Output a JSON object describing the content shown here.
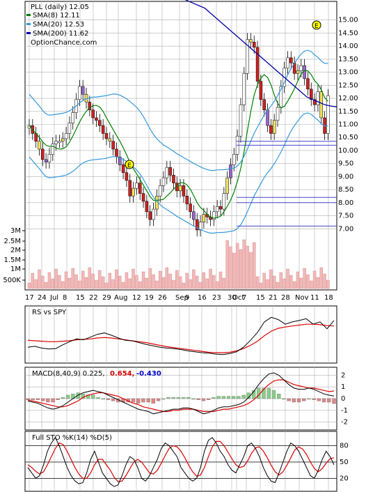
{
  "chart_data": {
    "type": "stock-chart",
    "x_dates": [
      "17",
      "24",
      "Jul",
      "8",
      "15",
      "22",
      "29",
      "Aug",
      "12",
      "19",
      "26",
      "Sep",
      "9",
      "16",
      "23",
      "30",
      "Oct",
      "7",
      "15",
      "21",
      "28",
      "Nov",
      "11",
      "18"
    ],
    "price_panel": {
      "legend_title": "PLL (daily) 12.05",
      "legend_items": [
        {
          "label": "SMA(8) 12.11",
          "color": "#008000"
        },
        {
          "label": "SMA(20) 12.53",
          "color": "#3399dd"
        },
        {
          "label": "SMA(200) 11.62",
          "color": "#0000aa"
        }
      ],
      "watermark": "OptionChance.com",
      "y_ticks": [
        "15.00",
        "14.50",
        "14.00",
        "13.50",
        "13.00",
        "12.50",
        "12.00",
        "11.50",
        "11.00",
        "10.50",
        "10.00",
        "9.50",
        "9.00",
        "8.50",
        "8.00",
        "7.50",
        "7.00"
      ],
      "ylim": [
        6.5,
        15.5
      ],
      "volume_ticks": [
        "3M",
        "2.5M",
        "2M",
        "1.5M",
        "1M",
        "500K"
      ],
      "earnings_marker": "E",
      "closes": [
        10.9,
        10.6,
        10.3,
        10.0,
        9.6,
        9.5,
        9.8,
        10.2,
        10.3,
        10.3,
        10.4,
        10.6,
        11.0,
        11.4,
        11.9,
        12.4,
        12.1,
        11.8,
        11.5,
        11.2,
        11.1,
        10.9,
        10.6,
        10.4,
        10.3,
        10.0,
        9.7,
        9.4,
        9.1,
        8.8,
        8.2,
        8.5,
        8.7,
        8.3,
        8.0,
        7.6,
        7.3,
        7.7,
        8.2,
        8.6,
        8.9,
        9.3,
        9.0,
        8.7,
        8.4,
        8.6,
        8.2,
        7.9,
        7.6,
        7.3,
        6.9,
        7.2,
        7.5,
        7.4,
        7.3,
        7.6,
        7.8,
        7.7,
        8.3,
        8.9,
        9.4,
        9.8,
        10.5,
        11.7,
        12.9,
        14.2,
        14.1,
        13.9,
        12.6,
        11.9,
        11.5,
        10.9,
        10.6,
        11.1,
        11.6,
        12.4,
        13.1,
        13.5,
        13.3,
        12.9,
        13.0,
        13.2,
        12.7,
        12.3,
        11.9,
        11.7,
        12.2,
        11.2,
        10.6,
        12.05
      ],
      "sma200": [
        16.1,
        16.0,
        15.9,
        15.8,
        15.7,
        15.6,
        15.5,
        15.4,
        15.2,
        15.0,
        14.8,
        14.6,
        14.4,
        14.2,
        14.0,
        13.8,
        13.6,
        13.4,
        13.2,
        13.0,
        12.8,
        12.6,
        12.4,
        12.2,
        12.0,
        11.9,
        11.8,
        11.7,
        11.65,
        11.62
      ]
    },
    "rs_panel": {
      "label": "RS vs SPY",
      "series_black": [
        0.3,
        0.32,
        0.28,
        0.26,
        0.27,
        0.35,
        0.42,
        0.48,
        0.46,
        0.52,
        0.58,
        0.61,
        0.56,
        0.5,
        0.45,
        0.44,
        0.4,
        0.36,
        0.33,
        0.3,
        0.28,
        0.27,
        0.25,
        0.22,
        0.2,
        0.18,
        0.17,
        0.15,
        0.14,
        0.16,
        0.2,
        0.3,
        0.45,
        0.62,
        0.85,
        0.95,
        0.9,
        0.8,
        0.85,
        0.88,
        0.92,
        0.8,
        0.85,
        0.7,
        0.88
      ],
      "series_red": [
        0.45,
        0.44,
        0.43,
        0.42,
        0.42,
        0.43,
        0.44,
        0.46,
        0.47,
        0.48,
        0.5,
        0.51,
        0.5,
        0.48,
        0.46,
        0.44,
        0.42,
        0.4,
        0.37,
        0.34,
        0.31,
        0.29,
        0.27,
        0.25,
        0.23,
        0.21,
        0.19,
        0.18,
        0.18,
        0.19,
        0.22,
        0.27,
        0.34,
        0.43,
        0.55,
        0.65,
        0.71,
        0.74,
        0.76,
        0.78,
        0.8,
        0.8,
        0.79,
        0.77,
        0.76
      ]
    },
    "macd_panel": {
      "label": "MACD(8,40,9) 0.225,",
      "value_red": "0.654,",
      "value_blue": "-0.430",
      "y_ticks": [
        "2",
        "1",
        "0",
        "-1",
        "-2"
      ],
      "ylim": [
        -2.5,
        2.5
      ],
      "macd": [
        -0.2,
        -0.3,
        -0.4,
        -0.6,
        -0.8,
        -0.9,
        -0.8,
        -0.6,
        -0.3,
        0.0,
        0.3,
        0.5,
        0.6,
        0.7,
        0.6,
        0.5,
        0.3,
        0.1,
        -0.1,
        -0.3,
        -0.5,
        -0.7,
        -0.9,
        -1.0,
        -1.1,
        -1.3,
        -1.2,
        -1.1,
        -1.0,
        -0.9,
        -0.9,
        -0.8,
        -0.8,
        -0.9,
        -1.1,
        -1.3,
        -1.2,
        -1.0,
        -0.8,
        -0.7,
        -0.7,
        -0.6,
        -0.5,
        -0.3,
        0.1,
        0.6,
        1.2,
        1.7,
        2.1,
        2.2,
        2.0,
        1.6,
        1.2,
        0.9,
        0.8,
        0.8,
        0.9,
        0.8,
        0.6,
        0.4,
        0.3,
        0.225
      ],
      "signal": [
        -0.1,
        -0.2,
        -0.3,
        -0.4,
        -0.5,
        -0.6,
        -0.7,
        -0.7,
        -0.6,
        -0.4,
        -0.2,
        0.1,
        0.3,
        0.4,
        0.5,
        0.5,
        0.4,
        0.3,
        0.2,
        0.0,
        -0.2,
        -0.4,
        -0.5,
        -0.7,
        -0.8,
        -0.9,
        -1.0,
        -1.1,
        -1.1,
        -1.0,
        -1.0,
        -0.9,
        -0.9,
        -0.9,
        -1.0,
        -1.1,
        -1.1,
        -1.1,
        -1.0,
        -0.9,
        -0.9,
        -0.8,
        -0.7,
        -0.6,
        -0.4,
        -0.1,
        0.3,
        0.8,
        1.2,
        1.5,
        1.6,
        1.6,
        1.4,
        1.2,
        1.1,
        1.0,
        0.9,
        0.9,
        0.8,
        0.7,
        0.6,
        0.654
      ]
    },
    "sto_panel": {
      "label": "Full STO %K(14) %D(5)",
      "y_ticks": [
        "80",
        "50",
        "20"
      ],
      "ylim": [
        0,
        100
      ],
      "k": [
        40,
        30,
        20,
        25,
        45,
        70,
        85,
        95,
        80,
        60,
        40,
        25,
        15,
        10,
        12,
        30,
        55,
        70,
        50,
        30,
        20,
        10,
        5,
        8,
        25,
        45,
        60,
        55,
        40,
        20,
        15,
        25,
        40,
        55,
        75,
        85,
        80,
        70,
        60,
        40,
        30,
        20,
        15,
        20,
        40,
        70,
        90,
        95,
        85,
        70,
        60,
        45,
        35,
        30,
        45,
        60,
        80,
        85,
        75,
        60,
        40,
        25,
        15,
        12,
        30,
        50,
        70,
        85,
        80,
        70,
        55,
        40,
        25,
        20,
        35,
        55,
        70,
        60,
        45
      ],
      "d": [
        45,
        40,
        33,
        28,
        32,
        45,
        60,
        75,
        85,
        82,
        70,
        55,
        40,
        28,
        20,
        20,
        30,
        45,
        55,
        55,
        45,
        35,
        22,
        14,
        15,
        25,
        38,
        50,
        55,
        50,
        40,
        30,
        28,
        35,
        48,
        62,
        75,
        80,
        78,
        70,
        58,
        44,
        32,
        24,
        26,
        40,
        60,
        78,
        88,
        88,
        80,
        68,
        56,
        45,
        40,
        42,
        52,
        66,
        76,
        78,
        70,
        58,
        44,
        32,
        26,
        32,
        44,
        58,
        72,
        78,
        74,
        64,
        50,
        38,
        32,
        38,
        48,
        56,
        58
      ]
    }
  }
}
